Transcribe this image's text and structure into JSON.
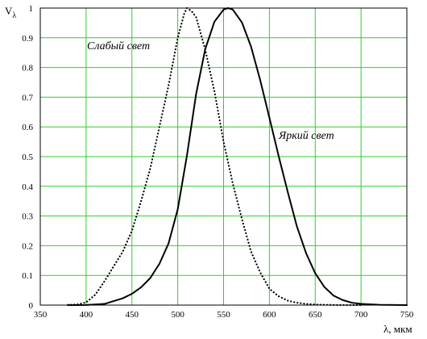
{
  "chart_data": {
    "type": "line",
    "xlabel": "λ, мкм",
    "ylabel": "V",
    "ylabel_sub": "λ",
    "xlim": [
      350,
      750
    ],
    "ylim": [
      0,
      1
    ],
    "x_ticks": [
      "350",
      "400",
      "450",
      "500",
      "550",
      "600",
      "650",
      "700",
      "750"
    ],
    "y_ticks": [
      "0",
      "0.1",
      "0.2",
      "0.3",
      "0.4",
      "0.5",
      "0.6",
      "0.7",
      "0.8",
      "0.9",
      "1"
    ],
    "grid": true,
    "grid_color": "#33cc33",
    "series": [
      {
        "name": "Слабый свет",
        "style": "dotted",
        "color": "#000000",
        "x": [
          380,
          390,
          400,
          410,
          420,
          430,
          440,
          450,
          460,
          470,
          480,
          490,
          500,
          507,
          510,
          515,
          520,
          530,
          540,
          550,
          560,
          570,
          580,
          590,
          600,
          610,
          620,
          630,
          640,
          650,
          660,
          670,
          680,
          690,
          700
        ],
        "y": [
          0.0006,
          0.002,
          0.009,
          0.035,
          0.08,
          0.13,
          0.18,
          0.25,
          0.35,
          0.46,
          0.6,
          0.74,
          0.9,
          0.98,
          1.0,
          0.99,
          0.97,
          0.86,
          0.72,
          0.55,
          0.41,
          0.29,
          0.18,
          0.11,
          0.055,
          0.03,
          0.015,
          0.008,
          0.004,
          0.002,
          0.001,
          0.0005,
          0.0002,
          0.0001,
          0.0
        ]
      },
      {
        "name": "Яркий свет",
        "style": "solid",
        "color": "#000000",
        "x": [
          380,
          400,
          420,
          440,
          450,
          460,
          470,
          480,
          490,
          500,
          510,
          520,
          530,
          540,
          550,
          555,
          560,
          570,
          580,
          590,
          600,
          610,
          620,
          630,
          640,
          650,
          660,
          670,
          680,
          690,
          700,
          720,
          750
        ],
        "y": [
          0.0,
          0.0004,
          0.004,
          0.023,
          0.038,
          0.06,
          0.091,
          0.139,
          0.208,
          0.323,
          0.503,
          0.71,
          0.862,
          0.954,
          0.995,
          1.0,
          0.995,
          0.952,
          0.87,
          0.757,
          0.631,
          0.503,
          0.381,
          0.265,
          0.175,
          0.107,
          0.061,
          0.032,
          0.017,
          0.008,
          0.004,
          0.001,
          0.0
        ]
      }
    ],
    "annotations": [
      {
        "text": "Слабый свет",
        "series": 0
      },
      {
        "text": "Яркий свет",
        "series": 1
      }
    ]
  }
}
